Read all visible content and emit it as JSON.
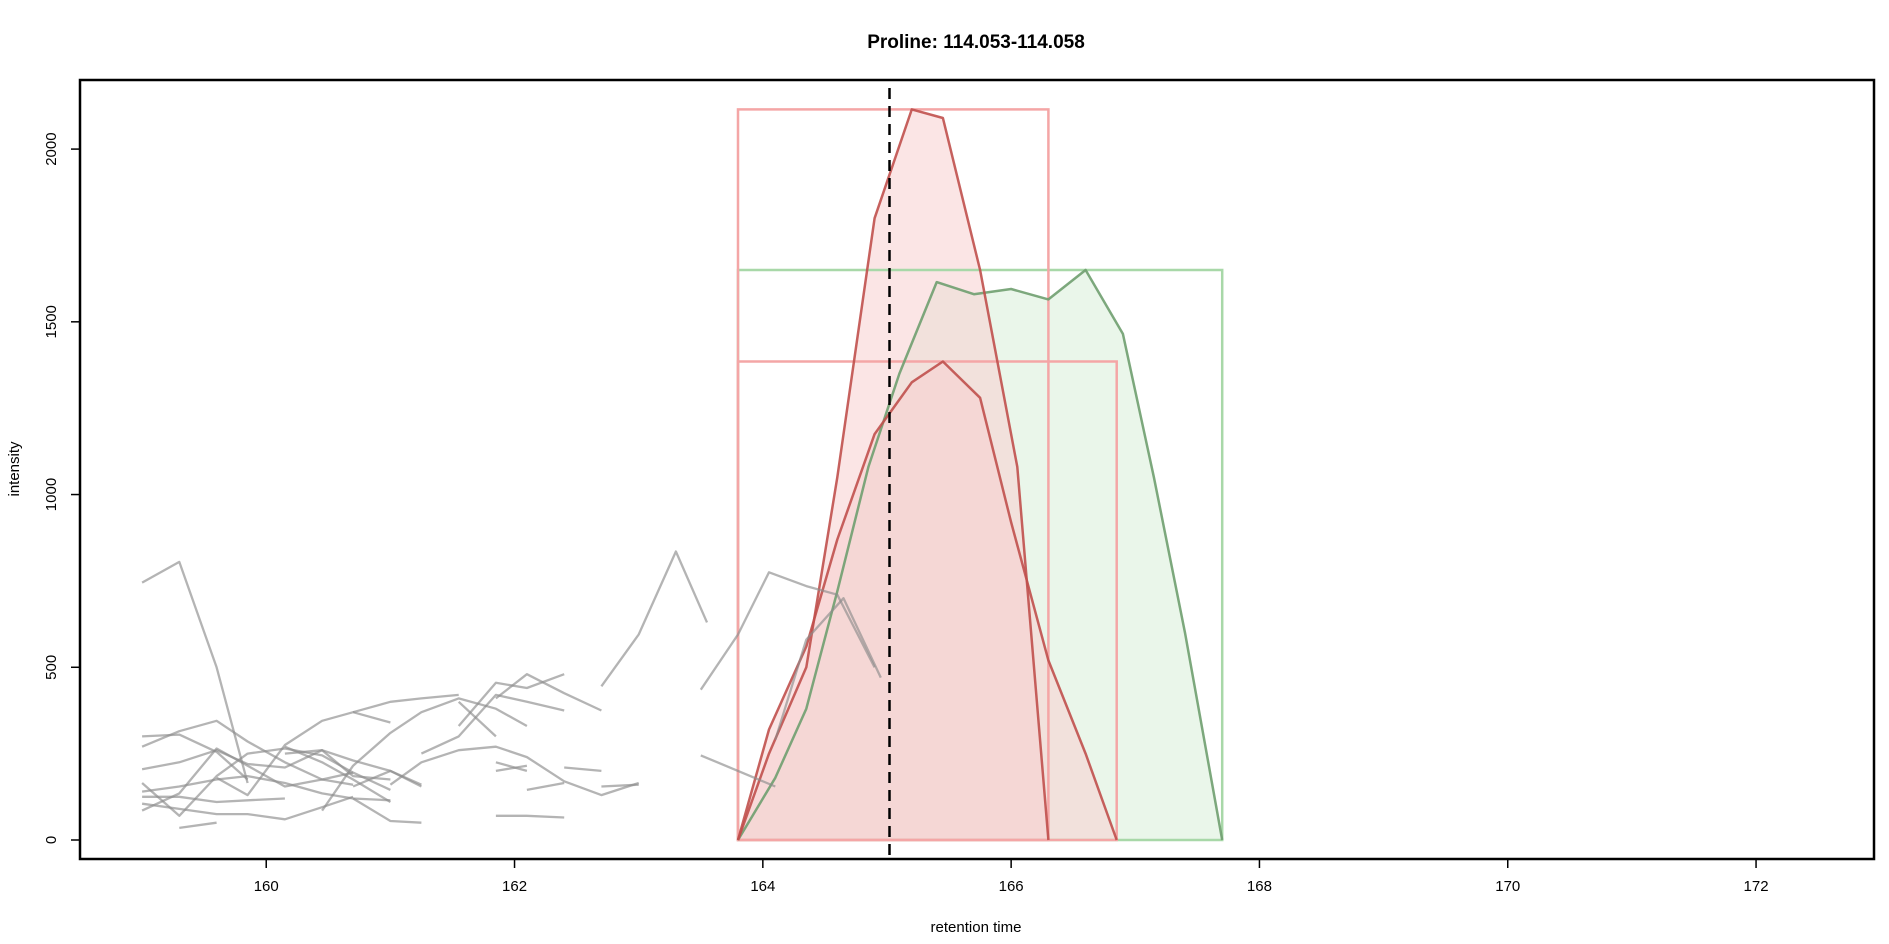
{
  "chart_data": {
    "type": "line",
    "title": "Proline: 114.053-114.058",
    "xlabel": "retention time",
    "ylabel": "intensity",
    "xlim": [
      158.5,
      172.95
    ],
    "ylim": [
      -55,
      2200
    ],
    "xticks": [
      160,
      162,
      164,
      166,
      168,
      170,
      172
    ],
    "yticks": [
      0,
      500,
      1000,
      1500,
      2000
    ],
    "xtick_labels": [
      "160",
      "162",
      "164",
      "166",
      "168",
      "170",
      "172"
    ],
    "ytick_labels": [
      "0",
      "500",
      "1000",
      "1500",
      "2000"
    ],
    "grid": false,
    "reference_line": {
      "x": 165.02,
      "style": "dashed",
      "color": "#000000"
    },
    "colors": {
      "red_line": "#c0504d",
      "red_box": "#f4a6a6",
      "red_fill": "#f8d0d0",
      "green_line": "#6f9f6f",
      "green_box": "#a8d8a8",
      "green_fill": "#e3f3e3",
      "noise": "#8c8c8c"
    },
    "peaks": [
      {
        "color": "green",
        "box": {
          "x0": 163.8,
          "x1": 167.7,
          "y0": 0,
          "y1": 1650
        },
        "points": [
          [
            163.8,
            0
          ],
          [
            164.1,
            180
          ],
          [
            164.35,
            380
          ],
          [
            164.6,
            720
          ],
          [
            164.85,
            1080
          ],
          [
            165.1,
            1350
          ],
          [
            165.4,
            1615
          ],
          [
            165.7,
            1580
          ],
          [
            166.0,
            1595
          ],
          [
            166.3,
            1565
          ],
          [
            166.6,
            1650
          ],
          [
            166.9,
            1465
          ],
          [
            167.15,
            1050
          ],
          [
            167.4,
            600
          ],
          [
            167.7,
            0
          ]
        ]
      },
      {
        "color": "red",
        "box": {
          "x0": 163.8,
          "x1": 166.3,
          "y0": 0,
          "y1": 2115
        },
        "points": [
          [
            163.8,
            0
          ],
          [
            164.05,
            250
          ],
          [
            164.35,
            500
          ],
          [
            164.6,
            1050
          ],
          [
            164.9,
            1800
          ],
          [
            165.2,
            2115
          ],
          [
            165.45,
            2090
          ],
          [
            165.75,
            1650
          ],
          [
            166.05,
            1080
          ],
          [
            166.3,
            0
          ]
        ]
      },
      {
        "color": "red",
        "box": {
          "x0": 163.8,
          "x1": 166.85,
          "y0": 0,
          "y1": 1385
        },
        "points": [
          [
            163.8,
            0
          ],
          [
            164.05,
            320
          ],
          [
            164.35,
            560
          ],
          [
            164.6,
            870
          ],
          [
            164.9,
            1175
          ],
          [
            165.2,
            1325
          ],
          [
            165.45,
            1385
          ],
          [
            165.75,
            1280
          ],
          [
            166.0,
            920
          ],
          [
            166.3,
            520
          ],
          [
            166.6,
            250
          ],
          [
            166.85,
            0
          ]
        ]
      }
    ],
    "noise_traces": [
      [
        [
          159.0,
          745
        ],
        [
          159.3,
          805
        ],
        [
          159.6,
          500
        ],
        [
          159.85,
          165
        ]
      ],
      [
        [
          159.0,
          300
        ],
        [
          159.3,
          305
        ],
        [
          159.6,
          255
        ],
        [
          159.85,
          175
        ]
      ],
      [
        [
          159.0,
          270
        ],
        [
          159.3,
          315
        ],
        [
          159.6,
          345
        ],
        [
          159.85,
          285
        ],
        [
          160.15,
          225
        ],
        [
          160.45,
          175
        ],
        [
          160.7,
          160
        ]
      ],
      [
        [
          159.0,
          85
        ],
        [
          159.3,
          135
        ],
        [
          159.6,
          265
        ],
        [
          159.85,
          215
        ],
        [
          160.15,
          155
        ],
        [
          160.45,
          175
        ],
        [
          160.7,
          195
        ]
      ],
      [
        [
          159.0,
          125
        ],
        [
          159.3,
          125
        ],
        [
          159.6,
          110
        ],
        [
          159.85,
          115
        ],
        [
          160.15,
          120
        ]
      ],
      [
        [
          159.0,
          205
        ],
        [
          159.3,
          225
        ],
        [
          159.6,
          260
        ],
        [
          159.85,
          220
        ],
        [
          160.15,
          210
        ],
        [
          160.45,
          260
        ],
        [
          160.7,
          230
        ],
        [
          161.0,
          200
        ],
        [
          161.25,
          155
        ]
      ],
      [
        [
          159.0,
          165
        ],
        [
          159.3,
          70
        ],
        [
          159.6,
          185
        ],
        [
          159.85,
          250
        ],
        [
          160.15,
          265
        ],
        [
          160.45,
          245
        ],
        [
          160.7,
          195
        ],
        [
          161.0,
          145
        ]
      ],
      [
        [
          159.0,
          105
        ],
        [
          159.3,
          90
        ],
        [
          159.6,
          75
        ],
        [
          159.85,
          75
        ],
        [
          160.15,
          60
        ],
        [
          160.45,
          95
        ],
        [
          160.7,
          125
        ]
      ],
      [
        [
          159.0,
          140
        ],
        [
          159.3,
          155
        ],
        [
          159.6,
          175
        ],
        [
          159.85,
          185
        ],
        [
          160.15,
          165
        ],
        [
          160.45,
          135
        ],
        [
          160.7,
          120
        ],
        [
          161.0,
          115
        ]
      ],
      [
        [
          159.3,
          35
        ],
        [
          159.6,
          50
        ]
      ],
      [
        [
          159.6,
          180
        ],
        [
          159.85,
          130
        ],
        [
          160.15,
          275
        ],
        [
          160.45,
          345
        ],
        [
          160.7,
          370
        ],
        [
          161.0,
          340
        ]
      ],
      [
        [
          160.15,
          250
        ],
        [
          160.45,
          260
        ],
        [
          160.7,
          185
        ],
        [
          161.0,
          175
        ]
      ],
      [
        [
          160.15,
          270
        ],
        [
          160.45,
          225
        ],
        [
          160.7,
          175
        ],
        [
          161.0,
          110
        ]
      ],
      [
        [
          160.45,
          85
        ],
        [
          160.7,
          215
        ],
        [
          161.0,
          310
        ],
        [
          161.25,
          370
        ],
        [
          161.55,
          410
        ],
        [
          161.85,
          380
        ],
        [
          162.1,
          330
        ]
      ],
      [
        [
          160.7,
          155
        ],
        [
          161.0,
          200
        ],
        [
          161.25,
          160
        ]
      ],
      [
        [
          160.7,
          370
        ],
        [
          161.0,
          400
        ],
        [
          161.25,
          410
        ],
        [
          161.55,
          420
        ]
      ],
      [
        [
          160.7,
          120
        ],
        [
          161.0,
          55
        ],
        [
          161.25,
          50
        ]
      ],
      [
        [
          161.0,
          160
        ],
        [
          161.25,
          225
        ],
        [
          161.55,
          260
        ],
        [
          161.85,
          270
        ],
        [
          162.1,
          240
        ],
        [
          162.4,
          170
        ],
        [
          162.7,
          130
        ],
        [
          163.0,
          165
        ]
      ],
      [
        [
          161.25,
          250
        ],
        [
          161.55,
          300
        ],
        [
          161.85,
          420
        ],
        [
          162.1,
          400
        ],
        [
          162.4,
          375
        ]
      ],
      [
        [
          161.55,
          330
        ],
        [
          161.85,
          455
        ],
        [
          162.1,
          440
        ],
        [
          162.4,
          480
        ]
      ],
      [
        [
          161.55,
          400
        ],
        [
          161.85,
          300
        ]
      ],
      [
        [
          161.85,
          410
        ],
        [
          162.1,
          480
        ],
        [
          162.4,
          425
        ],
        [
          162.7,
          375
        ]
      ],
      [
        [
          161.85,
          200
        ],
        [
          162.1,
          215
        ]
      ],
      [
        [
          161.85,
          225
        ],
        [
          162.1,
          200
        ]
      ],
      [
        [
          161.85,
          70
        ],
        [
          162.1,
          70
        ],
        [
          162.4,
          65
        ]
      ],
      [
        [
          162.1,
          145
        ],
        [
          162.4,
          165
        ]
      ],
      [
        [
          162.4,
          210
        ],
        [
          162.7,
          200
        ]
      ],
      [
        [
          162.7,
          155
        ],
        [
          163.0,
          160
        ]
      ],
      [
        [
          162.7,
          445
        ],
        [
          163.0,
          595
        ],
        [
          163.3,
          835
        ],
        [
          163.55,
          630
        ]
      ],
      [
        [
          163.5,
          435
        ],
        [
          163.8,
          595
        ],
        [
          164.05,
          775
        ],
        [
          164.35,
          735
        ],
        [
          164.6,
          710
        ],
        [
          164.9,
          500
        ]
      ],
      [
        [
          164.1,
          290
        ],
        [
          164.35,
          580
        ],
        [
          164.65,
          700
        ],
        [
          164.95,
          470
        ]
      ],
      [
        [
          163.5,
          245
        ],
        [
          163.8,
          200
        ],
        [
          164.1,
          155
        ]
      ]
    ]
  }
}
